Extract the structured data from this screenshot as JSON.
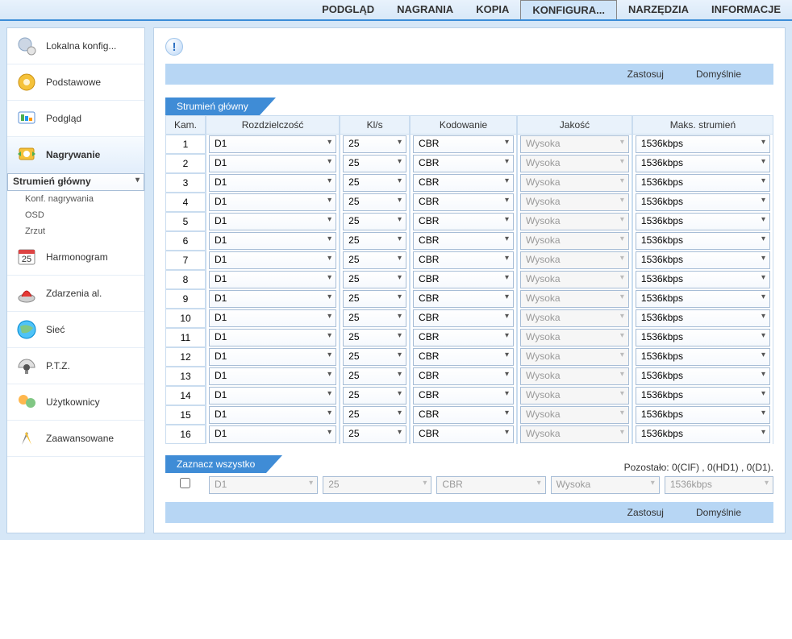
{
  "topnav": {
    "items": [
      "PODGLĄD",
      "NAGRANIA",
      "KOPIA",
      "KONFIGURA...",
      "NARZĘDZIA",
      "INFORMACJE"
    ],
    "active": 3
  },
  "sidebar": {
    "items": [
      {
        "label": "Lokalna konfig..."
      },
      {
        "label": "Podstawowe"
      },
      {
        "label": "Podgląd"
      },
      {
        "label": "Nagrywanie",
        "selected": true,
        "subs": [
          {
            "label": "Strumień główny",
            "sel": true
          },
          {
            "label": "Konf. nagrywania"
          },
          {
            "label": "OSD"
          },
          {
            "label": "Zrzut"
          }
        ]
      },
      {
        "label": "Harmonogram"
      },
      {
        "label": "Zdarzenia al."
      },
      {
        "label": "Sieć"
      },
      {
        "label": "P.T.Z."
      },
      {
        "label": "Użytkownicy"
      },
      {
        "label": "Zaawansowane"
      }
    ]
  },
  "actions": {
    "apply": "Zastosuj",
    "default": "Domyślnie"
  },
  "section": {
    "title": "Strumień główny"
  },
  "headers": {
    "cam": "Kam.",
    "res": "Rozdzielczość",
    "fps": "Kl/s",
    "enc": "Kodowanie",
    "qual": "Jakość",
    "max": "Maks. strumień"
  },
  "rows": [
    {
      "cam": "1",
      "res": "D1",
      "fps": "25",
      "enc": "CBR",
      "qual": "Wysoka",
      "max": "1536kbps"
    },
    {
      "cam": "2",
      "res": "D1",
      "fps": "25",
      "enc": "CBR",
      "qual": "Wysoka",
      "max": "1536kbps"
    },
    {
      "cam": "3",
      "res": "D1",
      "fps": "25",
      "enc": "CBR",
      "qual": "Wysoka",
      "max": "1536kbps"
    },
    {
      "cam": "4",
      "res": "D1",
      "fps": "25",
      "enc": "CBR",
      "qual": "Wysoka",
      "max": "1536kbps"
    },
    {
      "cam": "5",
      "res": "D1",
      "fps": "25",
      "enc": "CBR",
      "qual": "Wysoka",
      "max": "1536kbps"
    },
    {
      "cam": "6",
      "res": "D1",
      "fps": "25",
      "enc": "CBR",
      "qual": "Wysoka",
      "max": "1536kbps"
    },
    {
      "cam": "7",
      "res": "D1",
      "fps": "25",
      "enc": "CBR",
      "qual": "Wysoka",
      "max": "1536kbps"
    },
    {
      "cam": "8",
      "res": "D1",
      "fps": "25",
      "enc": "CBR",
      "qual": "Wysoka",
      "max": "1536kbps"
    },
    {
      "cam": "9",
      "res": "D1",
      "fps": "25",
      "enc": "CBR",
      "qual": "Wysoka",
      "max": "1536kbps"
    },
    {
      "cam": "10",
      "res": "D1",
      "fps": "25",
      "enc": "CBR",
      "qual": "Wysoka",
      "max": "1536kbps"
    },
    {
      "cam": "11",
      "res": "D1",
      "fps": "25",
      "enc": "CBR",
      "qual": "Wysoka",
      "max": "1536kbps"
    },
    {
      "cam": "12",
      "res": "D1",
      "fps": "25",
      "enc": "CBR",
      "qual": "Wysoka",
      "max": "1536kbps"
    },
    {
      "cam": "13",
      "res": "D1",
      "fps": "25",
      "enc": "CBR",
      "qual": "Wysoka",
      "max": "1536kbps"
    },
    {
      "cam": "14",
      "res": "D1",
      "fps": "25",
      "enc": "CBR",
      "qual": "Wysoka",
      "max": "1536kbps"
    },
    {
      "cam": "15",
      "res": "D1",
      "fps": "25",
      "enc": "CBR",
      "qual": "Wysoka",
      "max": "1536kbps"
    },
    {
      "cam": "16",
      "res": "D1",
      "fps": "25",
      "enc": "CBR",
      "qual": "Wysoka",
      "max": "1536kbps"
    }
  ],
  "checkall": {
    "label": "Zaznacz wszystko",
    "remaining": "Pozostało: 0(CIF) , 0(HD1) , 0(D1).",
    "res": "D1",
    "fps": "25",
    "enc": "CBR",
    "qual": "Wysoka",
    "max": "1536kbps"
  },
  "colors": {
    "accent": "#3f8cd6",
    "bar": "#b7d6f4",
    "border": "#c9dcef"
  }
}
